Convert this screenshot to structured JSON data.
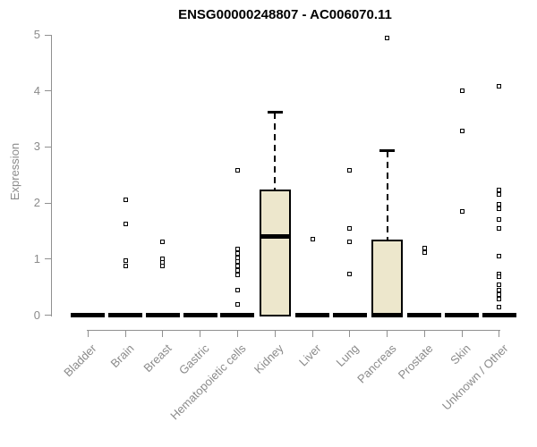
{
  "chart_data": {
    "type": "boxplot",
    "title": "ENSG00000248807 - AC006070.11",
    "ylabel": "Expression",
    "xlabel": "",
    "ylim": [
      0,
      5
    ],
    "yticks": [
      0,
      1,
      2,
      3,
      4,
      5
    ],
    "grid": false,
    "legend": "none",
    "categories": [
      "Bladder",
      "Brain",
      "Breast",
      "Gastric",
      "Hematopoietic cells",
      "Kidney",
      "Liver",
      "Lung",
      "Pancreas",
      "Prostate",
      "Skin",
      "Unknown / Other"
    ],
    "boxes": [
      {
        "category": "Bladder",
        "whisker_low": 0,
        "q1": 0,
        "median": 0,
        "q3": 0,
        "whisker_high": 0,
        "outliers": []
      },
      {
        "category": "Brain",
        "whisker_low": 0,
        "q1": 0,
        "median": 0,
        "q3": 0,
        "whisker_high": 0,
        "outliers": [
          2.05,
          1.62,
          0.97,
          0.88
        ]
      },
      {
        "category": "Breast",
        "whisker_low": 0,
        "q1": 0,
        "median": 0,
        "q3": 0,
        "whisker_high": 0,
        "outliers": [
          1.31,
          1.01,
          0.94,
          0.87
        ]
      },
      {
        "category": "Gastric",
        "whisker_low": 0,
        "q1": 0,
        "median": 0,
        "q3": 0,
        "whisker_high": 0,
        "outliers": []
      },
      {
        "category": "Hematopoietic cells",
        "whisker_low": 0,
        "q1": 0,
        "median": 0,
        "q3": 0,
        "whisker_high": 0,
        "outliers": [
          2.59,
          1.18,
          1.1,
          1.02,
          0.95,
          0.87,
          0.79,
          0.72,
          0.45,
          0.19
        ]
      },
      {
        "category": "Kidney",
        "whisker_low": 0,
        "q1": 0,
        "median": 1.4,
        "q3": 2.24,
        "whisker_high": 3.62,
        "outliers": []
      },
      {
        "category": "Liver",
        "whisker_low": 0,
        "q1": 0,
        "median": 0,
        "q3": 0,
        "whisker_high": 0,
        "outliers": [
          1.36
        ]
      },
      {
        "category": "Lung",
        "whisker_low": 0,
        "q1": 0,
        "median": 0,
        "q3": 0,
        "whisker_high": 0,
        "outliers": [
          2.58,
          1.54,
          1.3,
          0.74
        ]
      },
      {
        "category": "Pancreas",
        "whisker_low": 0,
        "q1": 0,
        "median": 0,
        "q3": 1.35,
        "whisker_high": 2.93,
        "outliers": [
          4.94
        ]
      },
      {
        "category": "Prostate",
        "whisker_low": 0,
        "q1": 0,
        "median": 0,
        "q3": 0,
        "whisker_high": 0,
        "outliers": [
          1.19,
          1.11
        ]
      },
      {
        "category": "Skin",
        "whisker_low": 0,
        "q1": 0,
        "median": 0,
        "q3": 0,
        "whisker_high": 0,
        "outliers": [
          4.0,
          3.28,
          1.85
        ]
      },
      {
        "category": "Unknown / Other",
        "whisker_low": 0,
        "q1": 0,
        "median": 0,
        "q3": 0,
        "whisker_high": 0,
        "outliers": [
          4.09,
          2.24,
          2.15,
          1.97,
          1.89,
          1.7,
          1.54,
          1.06,
          0.73,
          0.68,
          0.55,
          0.45,
          0.37,
          0.28,
          0.15
        ]
      }
    ],
    "colors": {
      "box_fill": "#EDE7CC",
      "box_border": "#000000",
      "median_color": "#000000",
      "axis_color": "#909090",
      "tick_label_color": "#8b8b8b",
      "title_color": "#000000"
    }
  }
}
